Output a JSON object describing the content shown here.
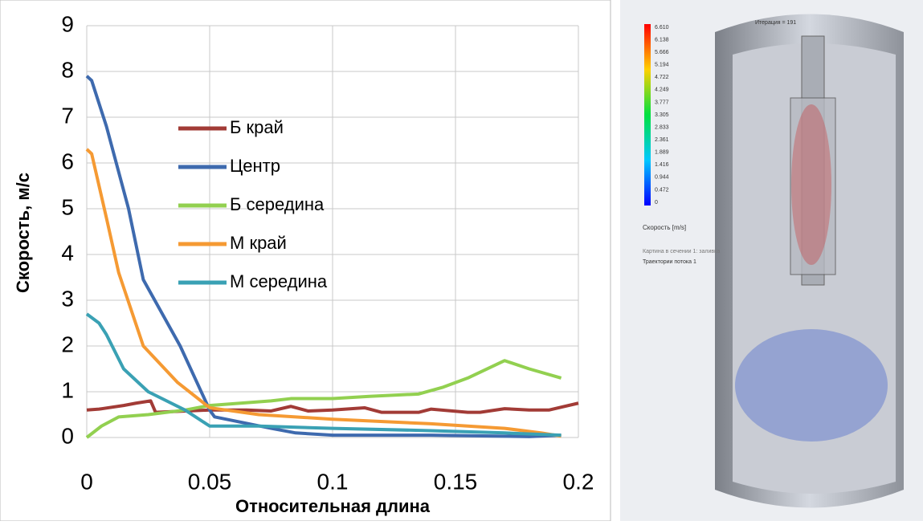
{
  "chart_data": {
    "type": "line",
    "x_label": "Относительная длина",
    "y_label": "Скорость, м/с",
    "xlim": [
      0,
      0.2
    ],
    "xticks": [
      0,
      0.05,
      0.1,
      0.15,
      0.2
    ],
    "ylim": [
      0,
      9
    ],
    "yticks": [
      0,
      1,
      2,
      3,
      4,
      5,
      6,
      7,
      8,
      9
    ],
    "grid": true,
    "series": [
      {
        "name": "Б край",
        "color": "#a23b36",
        "x": [
          0,
          0.005,
          0.015,
          0.02,
          0.026,
          0.028,
          0.05,
          0.065,
          0.075,
          0.083,
          0.09,
          0.1,
          0.113,
          0.12,
          0.135,
          0.14,
          0.155,
          0.16,
          0.17,
          0.18,
          0.188,
          0.2
        ],
        "values": [
          0.6,
          0.62,
          0.7,
          0.75,
          0.8,
          0.55,
          0.6,
          0.6,
          0.58,
          0.68,
          0.58,
          0.6,
          0.65,
          0.55,
          0.55,
          0.62,
          0.55,
          0.55,
          0.63,
          0.6,
          0.6,
          0.75
        ]
      },
      {
        "name": "Центр",
        "color": "#3e6aae",
        "x": [
          0,
          0.002,
          0.008,
          0.017,
          0.023,
          0.038,
          0.05,
          0.052,
          0.075,
          0.085,
          0.1,
          0.14,
          0.18,
          0.193
        ],
        "values": [
          7.9,
          7.8,
          6.8,
          5.0,
          3.45,
          2.0,
          0.6,
          0.45,
          0.2,
          0.1,
          0.05,
          0.05,
          0.02,
          0.05
        ]
      },
      {
        "name": "Б середина",
        "color": "#92d050",
        "x": [
          0,
          0.006,
          0.013,
          0.025,
          0.04,
          0.05,
          0.075,
          0.083,
          0.1,
          0.115,
          0.135,
          0.145,
          0.155,
          0.17,
          0.18,
          0.193
        ],
        "values": [
          0,
          0.25,
          0.45,
          0.5,
          0.6,
          0.7,
          0.8,
          0.85,
          0.85,
          0.9,
          0.95,
          1.1,
          1.3,
          1.68,
          1.5,
          1.3
        ]
      },
      {
        "name": "М край",
        "color": "#f59a33",
        "x": [
          0,
          0.002,
          0.008,
          0.013,
          0.023,
          0.037,
          0.05,
          0.07,
          0.1,
          0.14,
          0.17,
          0.185,
          0.193
        ],
        "values": [
          6.3,
          6.2,
          4.8,
          3.6,
          2.0,
          1.2,
          0.65,
          0.5,
          0.4,
          0.3,
          0.2,
          0.1,
          0.03
        ]
      },
      {
        "name": "М середина",
        "color": "#3aa1b4",
        "x": [
          0,
          0.005,
          0.008,
          0.015,
          0.025,
          0.04,
          0.05,
          0.07,
          0.1,
          0.14,
          0.17,
          0.193
        ],
        "values": [
          2.7,
          2.5,
          2.25,
          1.5,
          1.0,
          0.6,
          0.25,
          0.25,
          0.2,
          0.15,
          0.1,
          0.05
        ]
      }
    ]
  },
  "cfd_panel": {
    "iteration": "Итерация = 191",
    "colorbar_labels": [
      "6.610",
      "6.138",
      "5.666",
      "5.194",
      "4.722",
      "4.249",
      "3.777",
      "3.305",
      "2.833",
      "2.361",
      "1.889",
      "1.416",
      "0.944",
      "0.472",
      "0"
    ],
    "quantity": "Скорость [m/s]",
    "section": "Картина в сечении 1: заливка",
    "trajectories": "Траектории потока 1"
  }
}
